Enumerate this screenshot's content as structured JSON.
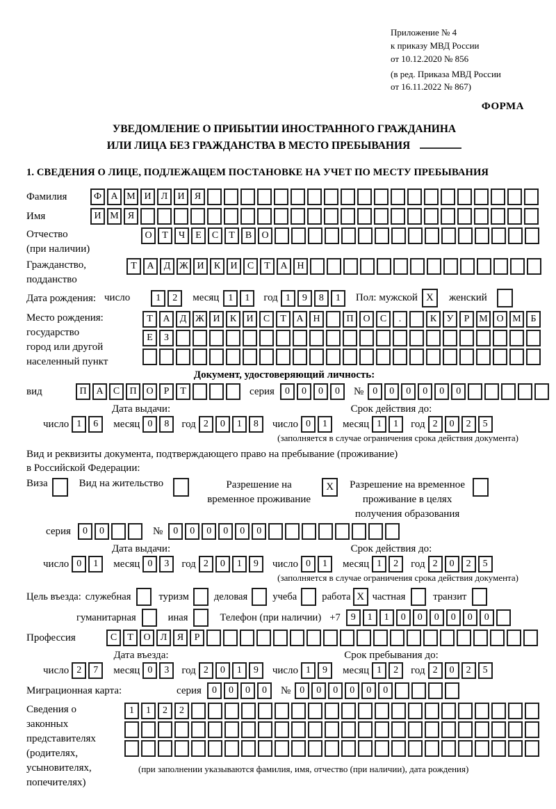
{
  "header": {
    "lines": [
      "Приложение № 4",
      "к приказу МВД России",
      "от 10.12.2020 № 856",
      "(в ред. Приказа МВД России",
      "от 16.11.2022 № 867)"
    ],
    "forma": "ФОРМА"
  },
  "title": {
    "line1": "УВЕДОМЛЕНИЕ О ПРИБЫТИИ ИНОСТРАННОГО ГРАЖДАНИНА",
    "line2": "ИЛИ ЛИЦА БЕЗ ГРАЖДАНСТВА В МЕСТО ПРЕБЫВАНИЯ"
  },
  "section1": {
    "heading": "1. СВЕДЕНИЯ О ЛИЦЕ, ПОДЛЕЖАЩЕМ ПОСТАНОВКЕ НА УЧЕТ ПО МЕСТУ ПРЕБЫВАНИЯ"
  },
  "date_labels": {
    "day": "число",
    "month": "месяц",
    "year": "год"
  },
  "fields": {
    "surname": {
      "label": "Фамилия",
      "cells": {
        "v": "ФАМИЛИЯ",
        "n": 27
      }
    },
    "firstname": {
      "label": "Имя",
      "cells": {
        "v": "ИМЯ",
        "n": 27
      }
    },
    "patronymic": {
      "label": "Отчество",
      "label2": "(при наличии)",
      "cells": {
        "v": "ОТЧЕСТВО",
        "n": 24
      }
    },
    "citizenship": {
      "label": "Гражданство,",
      "label2": "подданство",
      "cells": {
        "v": "ТАДЖИКИСТАН",
        "n": 25
      }
    },
    "birth_date": {
      "label": "Дата рождения:",
      "day": {
        "v": "12",
        "n": 2
      },
      "month": {
        "v": "11",
        "n": 2
      },
      "year": {
        "v": "1981",
        "n": 4
      },
      "sex_label": "Пол: мужской",
      "male_checked": true,
      "female_label": "женский",
      "female_checked": false
    },
    "birth_place": {
      "labels": [
        "Место рождения:",
        "государство",
        "город или другой",
        "населенный пункт"
      ],
      "rows": [
        {
          "v": "ТАДЖИКИСТАН ПОС. КУРМОМБ",
          "n": 24
        },
        {
          "v": "ЕЗ",
          "n": 24
        },
        {
          "v": "",
          "n": 24
        }
      ]
    }
  },
  "identity_doc": {
    "heading": "Документ, удостоверяющий личность:",
    "kind_label": "вид",
    "kind": {
      "v": "ПАСПОРТ",
      "n": 10
    },
    "series_label": "серия",
    "series": {
      "v": "0000",
      "n": 4
    },
    "number_label": "№",
    "number": {
      "v": "000000",
      "n": 11
    },
    "issue_heading": "Дата выдачи:",
    "issue": {
      "day": {
        "v": "16",
        "n": 2
      },
      "month": {
        "v": "08",
        "n": 2
      },
      "year": {
        "v": "2018",
        "n": 4
      }
    },
    "valid_heading": "Срок действия до:",
    "valid": {
      "day": {
        "v": "01",
        "n": 2
      },
      "month": {
        "v": "11",
        "n": 2
      },
      "year": {
        "v": "2025",
        "n": 4
      }
    },
    "note": "(заполняется в случае ограничения срока действия документа)"
  },
  "residence_doc": {
    "intro1": "Вид и реквизиты документа, подтверждающего право на пребывание (проживание)",
    "intro2": "в Российской Федерации:",
    "options": [
      {
        "label": "Виза",
        "checked": false
      },
      {
        "label": "Вид на жительство",
        "checked": false
      },
      {
        "label": "Разрешение на временное проживание",
        "checked": true
      },
      {
        "label": "Разрешение на временное проживание в целях получения образования",
        "checked": false
      }
    ],
    "series_label": "серия",
    "series": {
      "v": "00",
      "n": 4
    },
    "number_label": "№",
    "number": {
      "v": "000000",
      "n": 14
    },
    "issue_heading": "Дата выдачи:",
    "issue": {
      "day": {
        "v": "01",
        "n": 2
      },
      "month": {
        "v": "03",
        "n": 2
      },
      "year": {
        "v": "2019",
        "n": 4
      }
    },
    "valid_heading": "Срок действия до:",
    "valid": {
      "day": {
        "v": "01",
        "n": 2
      },
      "month": {
        "v": "12",
        "n": 2
      },
      "year": {
        "v": "2025",
        "n": 4
      }
    },
    "note": "(заполняется в случае ограничения срока действия документа)"
  },
  "visit": {
    "purpose_label": "Цель въезда:",
    "purposes": [
      {
        "label": "служебная",
        "checked": false
      },
      {
        "label": "туризм",
        "checked": false
      },
      {
        "label": "деловая",
        "checked": false
      },
      {
        "label": "учеба",
        "checked": false
      },
      {
        "label": "работа",
        "checked": true
      },
      {
        "label": "частная",
        "checked": false
      },
      {
        "label": "транзит",
        "checked": false
      },
      {
        "label": "гуманитарная",
        "checked": false
      },
      {
        "label": "иная",
        "checked": false
      }
    ],
    "phone_label": "Телефон (при наличии)",
    "phone_prefix": "+7",
    "phone": {
      "v": "911000000",
      "n": 10
    },
    "profession_label": "Профессия",
    "profession": {
      "v": "СТОЛЯР",
      "n": 26
    },
    "entry_heading": "Дата въезда:",
    "entry": {
      "day": {
        "v": "27",
        "n": 2
      },
      "month": {
        "v": "03",
        "n": 2
      },
      "year": {
        "v": "2019",
        "n": 4
      }
    },
    "stay_heading": "Срок пребывания до:",
    "stay": {
      "day": {
        "v": "19",
        "n": 2
      },
      "month": {
        "v": "12",
        "n": 2
      },
      "year": {
        "v": "2025",
        "n": 4
      }
    },
    "migration": {
      "label": "Миграционная карта:",
      "series_label": "серия",
      "series": {
        "v": "0000",
        "n": 4
      },
      "number_label": "№",
      "number": {
        "v": "000000",
        "n": 10
      }
    }
  },
  "representatives": {
    "labels": [
      "Сведения о",
      "законных",
      "представителях",
      "(родителях,",
      "усыновителях,",
      "попечителях)"
    ],
    "rows": [
      {
        "v": "1122",
        "n": 25
      },
      {
        "v": "",
        "n": 25
      },
      {
        "v": "",
        "n": 25
      }
    ],
    "note": "(при заполнении указываются фамилия, имя, отчество (при наличии), дата рождения)"
  }
}
